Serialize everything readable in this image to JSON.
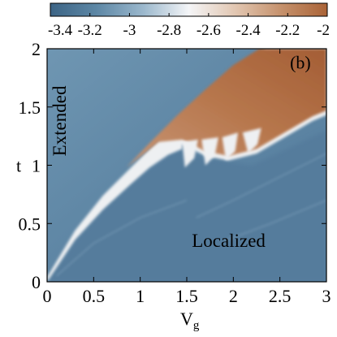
{
  "chart_data": {
    "type": "heatmap",
    "panel_label": "(b)",
    "xlabel_main": "V",
    "xlabel_sub": "g",
    "ylabel": "t",
    "xlim": [
      0,
      3
    ],
    "ylim": [
      0,
      2
    ],
    "x_ticks": [
      "0",
      "0.5",
      "1",
      "1.5",
      "2",
      "2.5",
      "3"
    ],
    "x_tick_values": [
      0,
      0.5,
      1,
      1.5,
      2,
      2.5,
      3
    ],
    "y_ticks": [
      "0",
      "0.5",
      "1",
      "1.5",
      "2"
    ],
    "y_tick_values": [
      0,
      0.5,
      1,
      1.5,
      2
    ],
    "colorbar": {
      "range": [
        -3.4,
        -2
      ],
      "tick_labels": [
        "-3.4",
        "-3.2",
        "-3",
        "-2.8",
        "-2.6",
        "-2.4",
        "-2.2",
        "-2"
      ],
      "tick_values": [
        -3.4,
        -3.2,
        -3.0,
        -2.8,
        -2.6,
        -2.4,
        -2.2,
        -2.0
      ],
      "colors": [
        "#3c6485",
        "#5d87a5",
        "#9ab7cc",
        "#f4f5f7",
        "#e2c7b2",
        "#c5916c",
        "#aa6337"
      ]
    },
    "annotations": [
      {
        "text": "Extended",
        "x": 0.2,
        "y": 1.38,
        "rotation": -90
      },
      {
        "text": "Localized",
        "x": 1.95,
        "y": 0.3,
        "rotation": 0
      }
    ],
    "background_value": -3.18,
    "regions": [
      {
        "name": "extended-region",
        "value": -3.08
      },
      {
        "name": "localized-region",
        "value": -3.22
      },
      {
        "name": "transition-band",
        "value": -2.75
      },
      {
        "name": "high-value-wedge",
        "value": -2.12
      }
    ],
    "boundary_lower_edge": [
      [
        0.0,
        0.0
      ],
      [
        0.3,
        0.36
      ],
      [
        0.6,
        0.62
      ],
      [
        0.9,
        0.84
      ],
      [
        1.1,
        0.98
      ],
      [
        1.3,
        1.09
      ],
      [
        1.45,
        1.14
      ]
    ],
    "boundary_upper_edge": [
      [
        0.0,
        0.04
      ],
      [
        0.3,
        0.44
      ],
      [
        0.6,
        0.74
      ],
      [
        0.9,
        0.98
      ],
      [
        1.2,
        1.22
      ],
      [
        1.5,
        1.44
      ],
      [
        1.8,
        1.66
      ],
      [
        2.1,
        1.86
      ],
      [
        2.35,
        2.0
      ]
    ],
    "wedge_top_edge": [
      [
        0.85,
        0.98
      ],
      [
        1.1,
        1.19
      ],
      [
        1.4,
        1.43
      ],
      [
        1.7,
        1.65
      ],
      [
        2.0,
        1.86
      ],
      [
        2.28,
        2.0
      ]
    ],
    "wedge_bottom_edge": [
      [
        1.45,
        1.18
      ],
      [
        1.7,
        1.08
      ],
      [
        1.95,
        1.04
      ],
      [
        2.25,
        1.1
      ],
      [
        2.55,
        1.24
      ],
      [
        2.85,
        1.38
      ],
      [
        3.0,
        1.43
      ]
    ]
  }
}
